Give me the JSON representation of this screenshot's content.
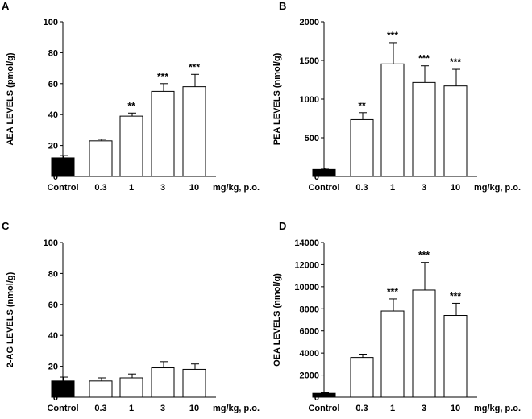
{
  "chart_data": [
    {
      "type": "bar",
      "panel": "A",
      "ylabel": "AEA LEVELS (pmol/g)",
      "xunit": "mg/kg, p.o.",
      "categories": [
        "Control",
        "0.3",
        "1",
        "3",
        "10"
      ],
      "values": [
        12,
        23,
        39,
        55,
        58
      ],
      "errors": [
        1.5,
        1,
        2,
        5,
        8
      ],
      "significance": [
        "",
        "",
        "**",
        "***",
        "***"
      ],
      "ylim": [
        0,
        100
      ],
      "yticks": [
        "0",
        "20",
        "40",
        "60",
        "80",
        "100"
      ],
      "bar_colors": [
        "#000000",
        "#ffffff",
        "#ffffff",
        "#ffffff",
        "#ffffff"
      ]
    },
    {
      "type": "bar",
      "panel": "B",
      "ylabel": "PEA LEVELS (nmol/g)",
      "xunit": "mg/kg, p.o.",
      "categories": [
        "Control",
        "0.3",
        "1",
        "3",
        "10"
      ],
      "values": [
        90,
        735,
        1455,
        1215,
        1170
      ],
      "errors": [
        15,
        90,
        275,
        215,
        215
      ],
      "significance": [
        "",
        "**",
        "***",
        "***",
        "***"
      ],
      "ylim": [
        0,
        2000
      ],
      "yticks": [
        "0",
        "500",
        "1000",
        "1500",
        "2000"
      ],
      "bar_colors": [
        "#000000",
        "#ffffff",
        "#ffffff",
        "#ffffff",
        "#ffffff"
      ]
    },
    {
      "type": "bar",
      "panel": "C",
      "ylabel": "2-AG LEVELS (nmol/g)",
      "xunit": "mg/kg, p.o.",
      "categories": [
        "Control",
        "0.3",
        "1",
        "3",
        "10"
      ],
      "values": [
        10.5,
        10.5,
        12.5,
        19,
        18
      ],
      "errors": [
        2.5,
        2,
        2.5,
        4,
        3.5
      ],
      "significance": [
        "",
        "",
        "",
        "",
        ""
      ],
      "ylim": [
        0,
        100
      ],
      "yticks": [
        "0",
        "20",
        "40",
        "60",
        "80",
        "100"
      ],
      "bar_colors": [
        "#000000",
        "#ffffff",
        "#ffffff",
        "#ffffff",
        "#ffffff"
      ]
    },
    {
      "type": "bar",
      "panel": "D",
      "ylabel": "OEA LEVELS (nmol/g)",
      "xunit": "mg/kg, p.o.",
      "categories": [
        "Control",
        "0.3",
        "1",
        "3",
        "10"
      ],
      "values": [
        350,
        3600,
        7800,
        9700,
        7400
      ],
      "errors": [
        50,
        300,
        1100,
        2500,
        1100
      ],
      "significance": [
        "",
        "",
        "***",
        "***",
        "***"
      ],
      "ylim": [
        0,
        14000
      ],
      "yticks": [
        "0",
        "2000",
        "4000",
        "6000",
        "8000",
        "10000",
        "12000",
        "14000"
      ],
      "bar_colors": [
        "#000000",
        "#ffffff",
        "#ffffff",
        "#ffffff",
        "#ffffff"
      ]
    }
  ]
}
